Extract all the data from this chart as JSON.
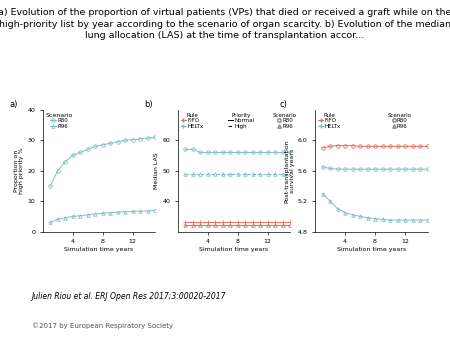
{
  "title_line1": "a) Evolution of the proportion of virtual patients (VPs) that died or received a graft while on the",
  "title_line2": "high-priority list by year according to the scenario of organ scarcity. b) Evolution of the median",
  "title_line3": "lung allocation (LAS) at the time of transplantation accor...",
  "title_fontsize": 6.8,
  "footer_text": "Julien Riou et al. ERJ Open Res 2017;3:00020-2017",
  "copyright_text": "©2017 by European Respiratory Society",
  "bg_color": "#ffffff",
  "panel_a": {
    "label": "a)",
    "xlabel": "Simulation time years",
    "ylabel": "Proportion on\nhigh priority %",
    "xlim": [
      0,
      15
    ],
    "ylim": [
      0,
      40
    ],
    "yticks": [
      0,
      10,
      20,
      30,
      40
    ],
    "xticks": [
      4,
      8,
      12
    ],
    "series": [
      {
        "name": "R80",
        "x": [
          1,
          2,
          3,
          4,
          5,
          6,
          7,
          8,
          9,
          10,
          11,
          12,
          13,
          14,
          15
        ],
        "y": [
          15,
          20,
          23,
          25,
          26,
          27,
          28,
          28.5,
          29,
          29.5,
          30,
          30.2,
          30.5,
          30.7,
          31
        ],
        "color": "#7fbfbf",
        "marker": "o",
        "markersize": 2.5,
        "linestyle": "-"
      },
      {
        "name": "R96",
        "x": [
          1,
          2,
          3,
          4,
          5,
          6,
          7,
          8,
          9,
          10,
          11,
          12,
          13,
          14,
          15
        ],
        "y": [
          3,
          4,
          4.5,
          5,
          5.2,
          5.5,
          5.8,
          6,
          6.2,
          6.4,
          6.5,
          6.6,
          6.7,
          6.8,
          7
        ],
        "color": "#7fbfbf",
        "marker": "^",
        "markersize": 2.5,
        "linestyle": "-"
      }
    ]
  },
  "panel_b": {
    "label": "b)",
    "xlabel": "Simulation time years",
    "ylabel": "Median LAS",
    "xlim": [
      0,
      15
    ],
    "ylim": [
      30,
      70
    ],
    "yticks": [
      40,
      50,
      60
    ],
    "xticks": [
      4,
      8,
      12
    ],
    "series": [
      {
        "name": "FIFO_Normal_R80",
        "x": [
          1,
          2,
          3,
          4,
          5,
          6,
          7,
          8,
          9,
          10,
          11,
          12,
          13,
          14,
          15
        ],
        "y": [
          33,
          33,
          33,
          33,
          33,
          33,
          33,
          33,
          33,
          33,
          33,
          33,
          33,
          33,
          33
        ],
        "color": "#e07060",
        "marker": "+",
        "markersize": 2.5,
        "linestyle": "-"
      },
      {
        "name": "FIFO_Normal_R96",
        "x": [
          1,
          2,
          3,
          4,
          5,
          6,
          7,
          8,
          9,
          10,
          11,
          12,
          13,
          14,
          15
        ],
        "y": [
          32,
          32,
          32,
          32,
          32,
          32,
          32,
          32,
          32,
          32,
          32,
          32,
          32,
          32,
          32
        ],
        "color": "#e07060",
        "marker": "^",
        "markersize": 2.5,
        "linestyle": "-"
      },
      {
        "name": "HELTx_Normal_R80",
        "x": [
          1,
          2,
          3,
          4,
          5,
          6,
          7,
          8,
          9,
          10,
          11,
          12,
          13,
          14,
          15
        ],
        "y": [
          57,
          57,
          56,
          56,
          56,
          56,
          56,
          56,
          56,
          56,
          56,
          56,
          56,
          56,
          56
        ],
        "color": "#7fbfbf",
        "marker": "o",
        "markersize": 2.5,
        "linestyle": "-"
      },
      {
        "name": "HELTx_High_R80",
        "x": [
          1,
          2,
          3,
          4,
          5,
          6,
          7,
          8,
          9,
          10,
          11,
          12,
          13,
          14,
          15
        ],
        "y": [
          49,
          49,
          49,
          49,
          49,
          49,
          49,
          49,
          49,
          49,
          49,
          49,
          49,
          49,
          49
        ],
        "color": "#7fbfbf",
        "marker": "^",
        "markersize": 2.5,
        "linestyle": "--"
      }
    ]
  },
  "panel_c": {
    "label": "c)",
    "xlabel": "Simulation time years",
    "ylabel": "Post-transplantation\nsurvival years",
    "xlim": [
      0,
      15
    ],
    "ylim": [
      4.8,
      6.4
    ],
    "yticks": [
      4.8,
      5.2,
      5.6,
      6.0
    ],
    "xticks": [
      4,
      8,
      12
    ],
    "series": [
      {
        "name": "FIFO_R80",
        "x": [
          1,
          2,
          3,
          4,
          5,
          6,
          7,
          8,
          9,
          10,
          11,
          12,
          13,
          14,
          15
        ],
        "y": [
          5.9,
          5.92,
          5.93,
          5.93,
          5.93,
          5.92,
          5.92,
          5.92,
          5.92,
          5.92,
          5.92,
          5.92,
          5.92,
          5.92,
          5.92
        ],
        "color": "#e07060",
        "marker": "o",
        "markersize": 2.5,
        "linestyle": "-"
      },
      {
        "name": "FIFO_R96",
        "x": [
          1,
          2,
          3,
          4,
          5,
          6,
          7,
          8,
          9,
          10,
          11,
          12,
          13,
          14,
          15
        ],
        "y": [
          5.65,
          5.63,
          5.62,
          5.62,
          5.62,
          5.62,
          5.62,
          5.62,
          5.62,
          5.62,
          5.62,
          5.62,
          5.62,
          5.62,
          5.62
        ],
        "color": "#7fbfbf",
        "marker": "o",
        "markersize": 2.5,
        "linestyle": "-"
      },
      {
        "name": "HELTx_R80",
        "x": [
          1,
          2,
          3,
          4,
          5,
          6,
          7,
          8,
          9,
          10,
          11,
          12,
          13,
          14,
          15
        ],
        "y": [
          5.3,
          5.2,
          5.1,
          5.05,
          5.02,
          5.0,
          4.98,
          4.97,
          4.96,
          4.95,
          4.95,
          4.95,
          4.95,
          4.95,
          4.95
        ],
        "color": "#7fbfbf",
        "marker": "^",
        "markersize": 2.5,
        "linestyle": "-"
      }
    ]
  },
  "colors": {
    "teal": "#7fbfbf",
    "salmon": "#e07060",
    "gray": "#888888"
  }
}
